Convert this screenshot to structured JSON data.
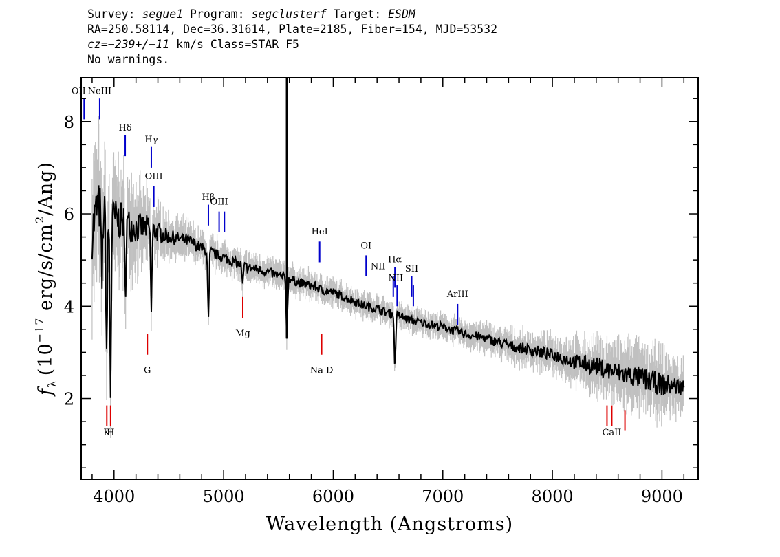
{
  "header": {
    "survey_label": "Survey: ",
    "survey": "segue1",
    "program_label": " Program: ",
    "program": "segclusterf",
    "target_label": " Target: ",
    "target": "ESDM",
    "line2": "RA=250.58114, Dec=36.31614, Plate=2185, Fiber=154, MJD=53532",
    "cz_label": "cz=",
    "cz_value": "−239+/−11",
    "cz_rest": " km/s Class=STAR F5",
    "line4": "No warnings."
  },
  "chart_data": {
    "type": "line",
    "xlabel": "Wavelength (Angstroms)",
    "ylabel_parts": {
      "f": "f",
      "lambda_sub": "λ",
      "open": "(10",
      "exp": "−17",
      "mid": " erg/s/cm",
      "sq": "2",
      "close": "/Ang)"
    },
    "xlim": [
      3700,
      9330
    ],
    "ylim": [
      0.25,
      8.95
    ],
    "x_ticks": [
      4000,
      5000,
      6000,
      7000,
      8000,
      9000
    ],
    "y_ticks": [
      2,
      4,
      6,
      8
    ],
    "x_minor_step": 200,
    "y_minor_step": 0.5,
    "series": [
      {
        "role": "flux",
        "color": "#000000",
        "x": [
          3800,
          3850,
          3900,
          3950,
          4000,
          4100,
          4200,
          4300,
          4400,
          4500,
          4600,
          4700,
          4800,
          4900,
          5000,
          5100,
          5200,
          5300,
          5400,
          5500,
          5600,
          5700,
          5800,
          5900,
          6000,
          6100,
          6200,
          6300,
          6400,
          6500,
          6600,
          6700,
          6800,
          6900,
          7000,
          7200,
          7400,
          7600,
          7800,
          8000,
          8200,
          8400,
          8600,
          8800,
          9000,
          9200
        ],
        "y": [
          5.6,
          6.2,
          6.0,
          5.8,
          5.9,
          5.8,
          5.7,
          5.7,
          5.6,
          5.5,
          5.45,
          5.4,
          5.25,
          5.15,
          5.05,
          4.95,
          4.85,
          4.8,
          4.75,
          4.65,
          4.6,
          4.5,
          4.45,
          4.35,
          4.3,
          4.2,
          4.1,
          4.0,
          3.95,
          3.85,
          3.8,
          3.7,
          3.65,
          3.6,
          3.55,
          3.4,
          3.3,
          3.15,
          3.05,
          2.95,
          2.8,
          2.7,
          2.55,
          2.45,
          2.3,
          2.25
        ]
      },
      {
        "role": "absorption",
        "color": "#000000",
        "x": [
          3889,
          3933,
          3968,
          4102,
          4340,
          4861,
          5173,
          5577,
          6563
        ],
        "y": [
          4.4,
          2.8,
          2.1,
          4.1,
          3.9,
          3.55,
          4.4,
          3.3,
          2.5
        ]
      }
    ],
    "error_band": {
      "color": "#c0c0c0",
      "half_width_x": [
        3800,
        4000,
        4500,
        5000,
        6000,
        7000,
        8000,
        8400,
        8700,
        9000,
        9200
      ],
      "half_width": [
        1.3,
        1.0,
        0.35,
        0.25,
        0.22,
        0.2,
        0.3,
        0.45,
        0.55,
        0.55,
        0.4
      ]
    },
    "emission_lines": [
      {
        "label": "OII",
        "wave": 3727
      },
      {
        "label": "NeIII",
        "wave": 3869
      },
      {
        "label": "Hδ",
        "wave": 4102
      },
      {
        "label": "Hγ",
        "wave": 4340
      },
      {
        "label": "OIII",
        "wave": 4363
      },
      {
        "label": "Hβ",
        "wave": 4861
      },
      {
        "label": "OIII",
        "wave": 4959
      },
      {
        "label": "",
        "wave": 5007
      },
      {
        "label": "HeI",
        "wave": 5876
      },
      {
        "label": "OI",
        "wave": 6300
      },
      {
        "label": "NII",
        "wave": 6548
      },
      {
        "label": "Hα",
        "wave": 6563
      },
      {
        "label": "NII",
        "wave": 6583
      },
      {
        "label": "SII",
        "wave": 6716
      },
      {
        "label": "",
        "wave": 6731
      },
      {
        "label": "ArIII",
        "wave": 7135
      }
    ],
    "absorption_lines": [
      {
        "label": "K",
        "wave": 3934
      },
      {
        "label": "H",
        "wave": 3969
      },
      {
        "label": "G",
        "wave": 4304
      },
      {
        "label": "Mg",
        "wave": 5175
      },
      {
        "label": "Na D",
        "wave": 5894
      },
      {
        "label": "",
        "wave": 8498
      },
      {
        "label": "CaII",
        "wave": 8542
      },
      {
        "label": "",
        "wave": 8662
      }
    ],
    "emission_color": "#0000cc",
    "absorption_color": "#dd0000"
  }
}
